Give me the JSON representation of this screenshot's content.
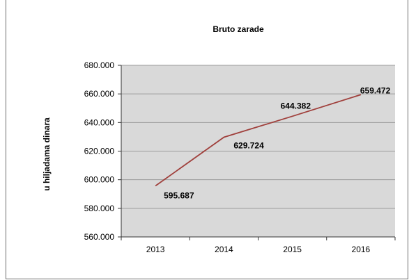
{
  "chart_data": {
    "type": "line",
    "title": "Bruto zarade",
    "xlabel": "",
    "ylabel": "u hiljadama  dinara",
    "categories": [
      "2013",
      "2014",
      "2015",
      "2016"
    ],
    "y_tick_labels": [
      "560.000",
      "580.000",
      "600.000",
      "620.000",
      "640.000",
      "660.000",
      "680.000"
    ],
    "ylim": [
      560,
      680
    ],
    "y_tick_step": 20,
    "grid": true,
    "legend": "none",
    "plot_background": "#d9d9d9",
    "line_color": "#a0403c",
    "series": [
      {
        "values": [
          595.687,
          629.724,
          644.382,
          659.472
        ],
        "labels": [
          "595.687",
          "629.724",
          "644.382",
          "659.472"
        ]
      }
    ]
  }
}
